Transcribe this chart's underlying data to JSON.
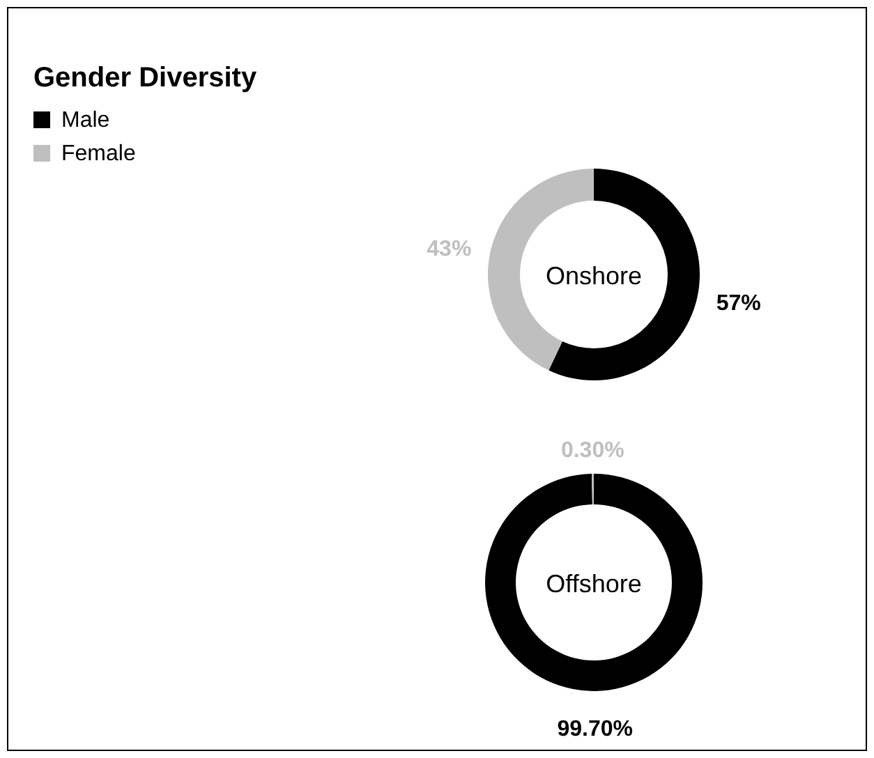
{
  "chart_data": [
    {
      "type": "donut",
      "title": "Gender Diversity",
      "annotations": [
        "Onshore"
      ],
      "categories": [
        "Male",
        "Female"
      ],
      "values": [
        57,
        43
      ],
      "colors": [
        "#000000",
        "#bfbfbf"
      ],
      "value_labels": [
        "57%",
        "43%"
      ],
      "legend": "top left"
    },
    {
      "type": "donut",
      "annotations": [
        "Offshore"
      ],
      "categories": [
        null,
        null
      ],
      "values": [
        99.7,
        0.3
      ],
      "colors": [
        "#000000",
        "#bfbfbf"
      ],
      "value_labels": [
        "99.70%",
        "0.30%"
      ]
    }
  ]
}
